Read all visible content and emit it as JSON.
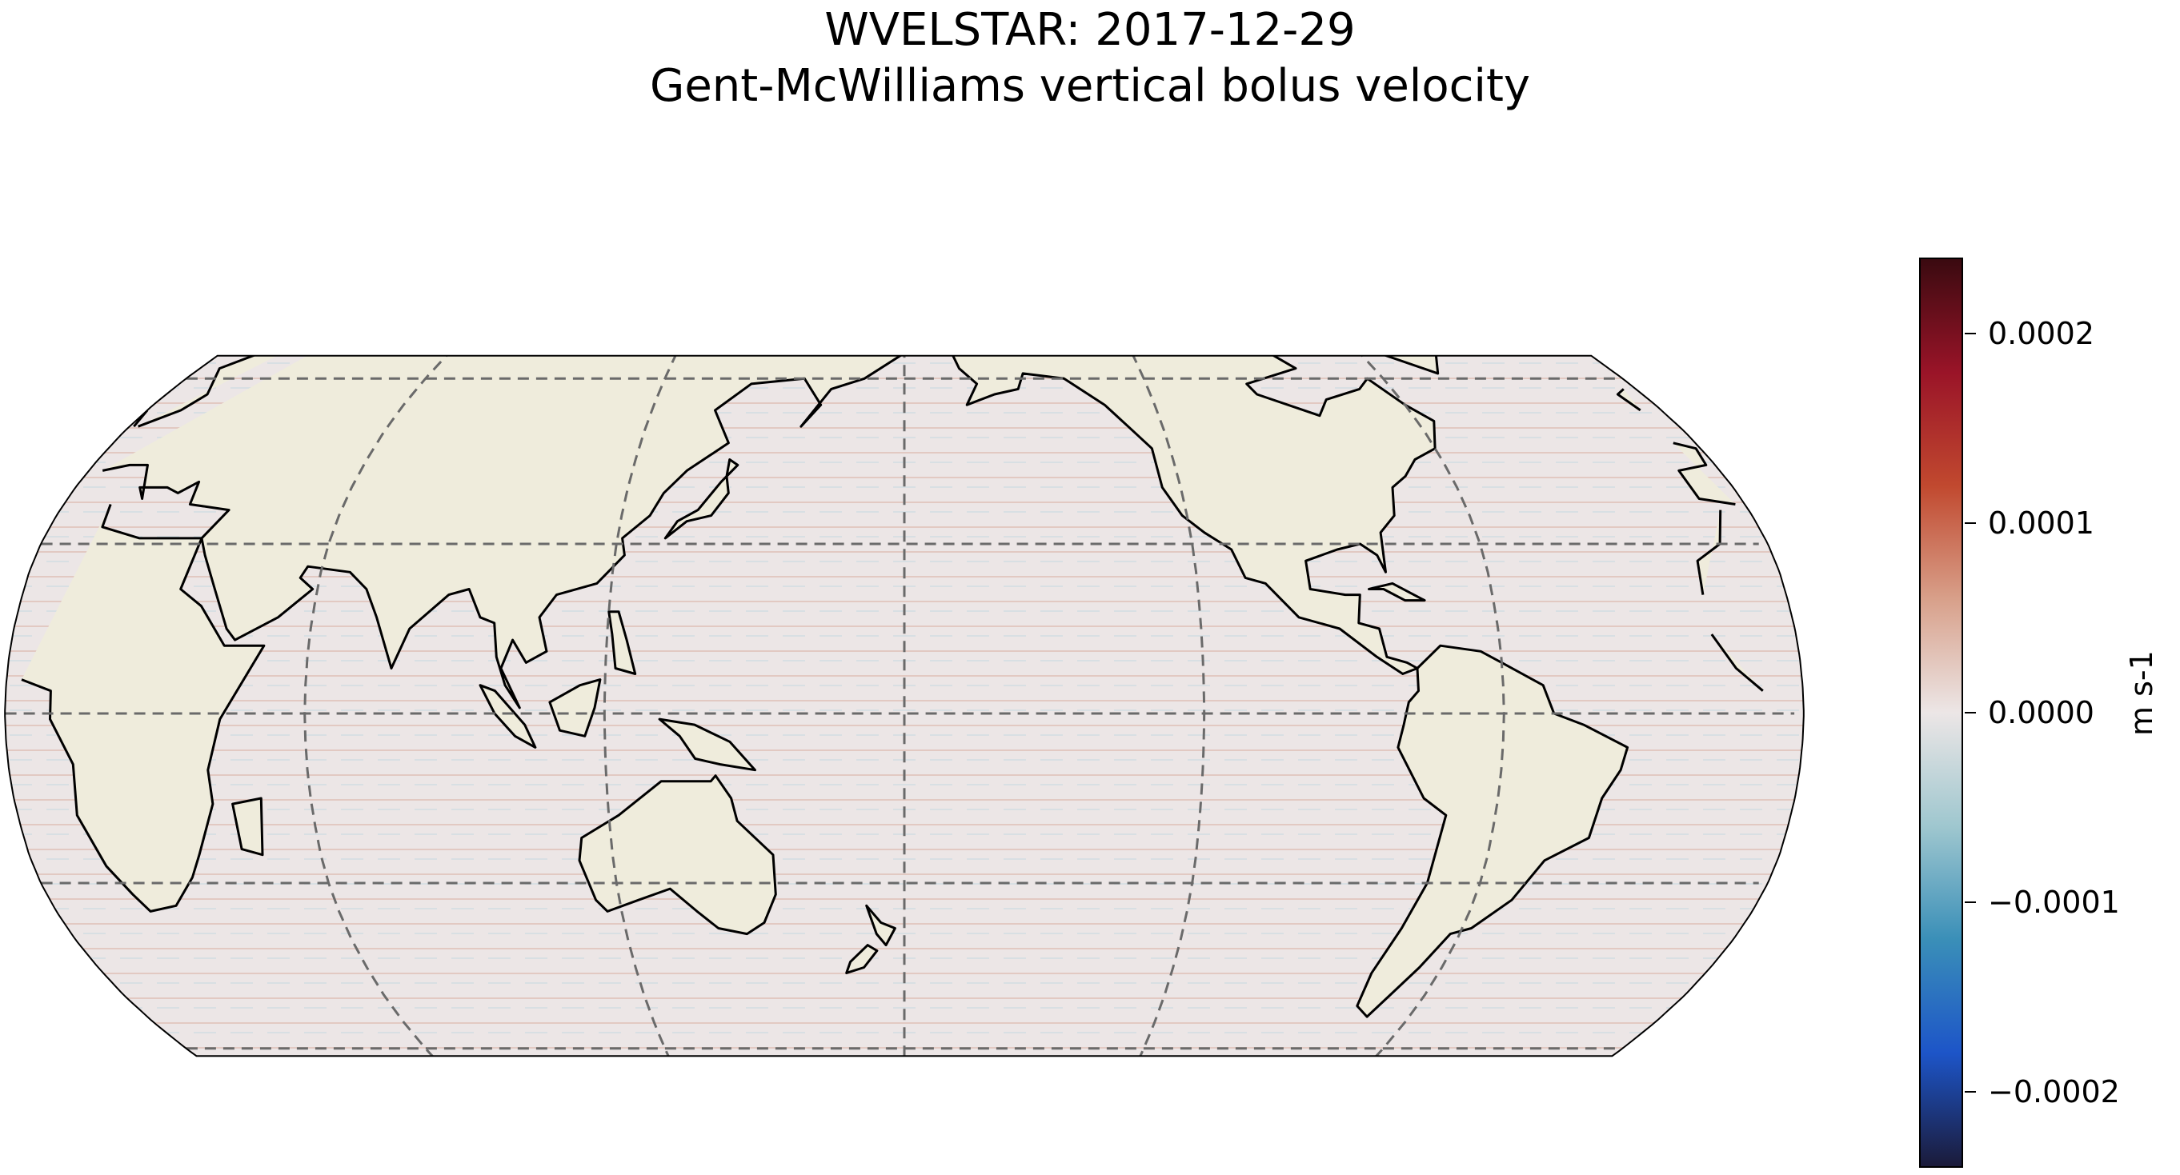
{
  "title": {
    "line1": "WVELSTAR: 2017-12-29",
    "line2": "Gent-McWilliams vertical bolus velocity"
  },
  "map": {
    "projection": "Robinson",
    "central_longitude": 180,
    "ocean_color": "#ece6e6",
    "land_color": "#efecdc",
    "coastline_color": "#000000",
    "gridline_style": "dashed",
    "gridline_color": "#6a6a6a",
    "parallels": [
      -60,
      -30,
      0,
      30,
      60
    ],
    "meridians": [
      60,
      120,
      180,
      240,
      300
    ]
  },
  "colorbar": {
    "colormap": "RdBu_r (balance)",
    "units": "m s-1",
    "range": [
      -0.00024,
      0.00024
    ],
    "ticks": [
      {
        "value": 0.0002,
        "label": "0.0002"
      },
      {
        "value": 0.0001,
        "label": "0.0001"
      },
      {
        "value": 0.0,
        "label": "0.0000"
      },
      {
        "value": -0.0001,
        "label": "−0.0001"
      },
      {
        "value": -0.0002,
        "label": "−0.0002"
      }
    ],
    "stops": [
      "#1b1b3a",
      "#1d55c8",
      "#3a8fb8",
      "#9fc7cf",
      "#ece6e6",
      "#d8a08a",
      "#c1492f",
      "#9a1428",
      "#3a0a10"
    ]
  }
}
